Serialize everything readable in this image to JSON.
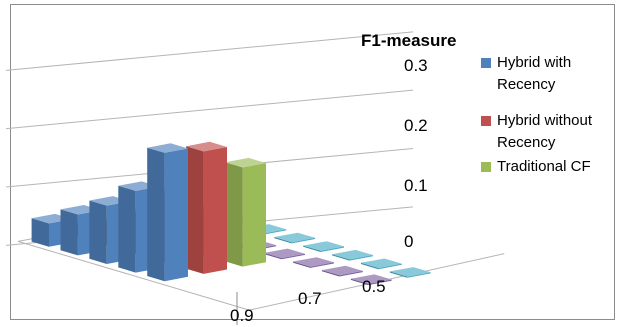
{
  "chart_data": {
    "type": "bar",
    "subtype": "3d-clustered-columns",
    "title": "",
    "zlabel": "F1-measure",
    "z_ticks": [
      "0",
      "0.1",
      "0.2",
      "0.3"
    ],
    "zlim": [
      0,
      0.3
    ],
    "y_ticks_visible": [
      "0.9",
      "0.7",
      "0.5"
    ],
    "gridlines": true,
    "legend_position": "right",
    "rows": 8,
    "series": [
      {
        "name": "Hybrid with Recency",
        "color": "#4f81bd",
        "values": [
          0.04,
          0.07,
          0.1,
          0.14,
          0.22,
          null,
          null,
          null
        ]
      },
      {
        "name": "Hybrid without Recency",
        "color": "#c0504d",
        "values": [
          0.02,
          0.04,
          0.07,
          0.12,
          0.21,
          null,
          null,
          null
        ]
      },
      {
        "name": "Traditional CF",
        "color": "#9bbb59",
        "values": [
          0.01,
          0.02,
          0.04,
          0.08,
          0.17,
          null,
          null,
          null
        ]
      },
      {
        "name": "",
        "color": "#8064a2",
        "values": [
          0.002,
          0.002,
          0.002,
          0.002,
          0.002,
          0.002,
          0.002,
          0.002
        ]
      },
      {
        "name": "",
        "color": "#4bacc6",
        "values": [
          0.002,
          0.002,
          0.002,
          0.002,
          0.002,
          0.002,
          0.002,
          0.002
        ]
      }
    ]
  }
}
